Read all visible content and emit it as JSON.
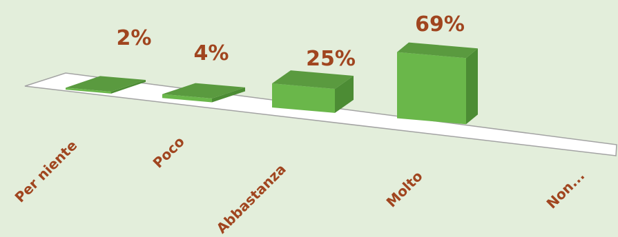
{
  "chart_data": {
    "type": "bar",
    "title": "",
    "xlabel": "",
    "ylabel": "",
    "categories": [
      "Per niente",
      "Poco",
      "Abbastanza",
      "Molto",
      "Non..."
    ],
    "values": [
      2,
      4,
      25,
      69,
      null
    ],
    "value_labels": [
      "2%",
      "4%",
      "25%",
      "69%",
      ""
    ],
    "ylim": [
      0,
      100
    ],
    "grid": false,
    "legend": "none",
    "style": "3d-perspective",
    "colors": {
      "background": "#e3eedb",
      "bar_front": "#6ab74a",
      "bar_side": "#4c8c34",
      "bar_top": "#5a9a3f",
      "label_text": "#a0451f",
      "floor_fill": "#ffffff",
      "floor_stroke": "#a3a3a3"
    }
  }
}
